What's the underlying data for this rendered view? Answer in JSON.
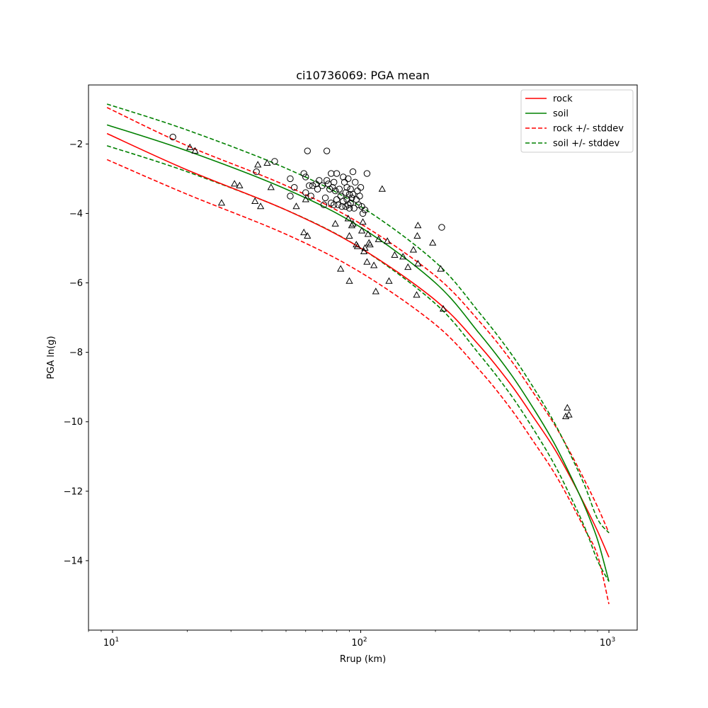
{
  "chart_data": {
    "type": "scatter",
    "title": "ci10736069: PGA mean",
    "xlabel": "Rrup (km)",
    "ylabel": "PGA ln(g)",
    "xscale": "log",
    "xlim": [
      8,
      1300
    ],
    "ylim": [
      -16,
      -0.3
    ],
    "x_ticks": [
      {
        "value": 10,
        "base": "10",
        "exp": "1"
      },
      {
        "value": 100,
        "base": "10",
        "exp": "2"
      },
      {
        "value": 1000,
        "base": "10",
        "exp": "3"
      }
    ],
    "y_ticks": [
      {
        "value": -2,
        "label": "−2"
      },
      {
        "value": -4,
        "label": "−4"
      },
      {
        "value": -6,
        "label": "−6"
      },
      {
        "value": -8,
        "label": "−8"
      },
      {
        "value": -10,
        "label": "−10"
      },
      {
        "value": -12,
        "label": "−12"
      },
      {
        "value": -14,
        "label": "−14"
      }
    ],
    "grid": false,
    "legend_position": "top-right",
    "series": [
      {
        "name": "rock",
        "kind": "line",
        "color": "#ff0000",
        "dash": "solid",
        "x": [
          9.5,
          20,
          50,
          100,
          200,
          300,
          400,
          500,
          600,
          700,
          800,
          900,
          1000
        ],
        "y": [
          -1.7,
          -2.75,
          -3.9,
          -5.0,
          -6.5,
          -7.8,
          -8.9,
          -9.9,
          -10.75,
          -11.6,
          -12.4,
          -13.15,
          -13.9
        ]
      },
      {
        "name": "soil",
        "kind": "line",
        "color": "#008000",
        "dash": "solid",
        "x": [
          9.5,
          20,
          50,
          100,
          200,
          300,
          400,
          500,
          600,
          700,
          800,
          900,
          1000
        ],
        "y": [
          -1.45,
          -2.2,
          -3.3,
          -4.4,
          -6.0,
          -7.45,
          -8.6,
          -9.65,
          -10.6,
          -11.55,
          -12.45,
          -13.4,
          -14.6
        ]
      },
      {
        "name": "rock +/- stddev",
        "kind": "band",
        "color": "#ff0000",
        "dash": "dashed",
        "x": [
          9.5,
          20,
          50,
          100,
          200,
          300,
          400,
          500,
          600,
          700,
          800,
          900,
          1000
        ],
        "upper": [
          -0.95,
          -2.05,
          -3.2,
          -4.3,
          -5.8,
          -7.1,
          -8.2,
          -9.2,
          -10.05,
          -10.9,
          -11.7,
          -12.45,
          -13.2
        ],
        "lower": [
          -2.45,
          -3.45,
          -4.6,
          -5.7,
          -7.2,
          -8.5,
          -9.6,
          -10.6,
          -11.45,
          -12.3,
          -13.1,
          -13.85,
          -15.25
        ]
      },
      {
        "name": "soil +/- stddev",
        "kind": "band",
        "color": "#008000",
        "dash": "dashed",
        "x": [
          9.5,
          20,
          50,
          100,
          200,
          300,
          400,
          500,
          600,
          700,
          800,
          900,
          1000
        ],
        "upper": [
          -0.85,
          -1.6,
          -2.7,
          -3.8,
          -5.4,
          -6.85,
          -8.0,
          -9.05,
          -10.0,
          -10.95,
          -11.85,
          -12.8,
          -13.2
        ],
        "lower": [
          -2.05,
          -2.8,
          -3.9,
          -5.0,
          -6.6,
          -8.05,
          -9.2,
          -10.25,
          -11.2,
          -12.15,
          -13.05,
          -14.0,
          -14.6
        ]
      }
    ],
    "markers": {
      "circle": [
        [
          17.5,
          -1.8
        ],
        [
          38,
          -2.8
        ],
        [
          45,
          -2.5
        ],
        [
          52,
          -3.0
        ],
        [
          52,
          -3.5
        ],
        [
          54,
          -3.25
        ],
        [
          59,
          -2.85
        ],
        [
          60,
          -2.95
        ],
        [
          60,
          -3.4
        ],
        [
          61,
          -2.2
        ],
        [
          62,
          -3.2
        ],
        [
          63,
          -3.5
        ],
        [
          64,
          -3.2
        ],
        [
          66,
          -3.15
        ],
        [
          67,
          -3.3
        ],
        [
          68,
          -3.05
        ],
        [
          70,
          -3.2
        ],
        [
          71,
          -3.75
        ],
        [
          72,
          -3.55
        ],
        [
          73,
          -2.2
        ],
        [
          73,
          -3.05
        ],
        [
          74,
          -3.15
        ],
        [
          75,
          -3.3
        ],
        [
          76,
          -2.85
        ],
        [
          76,
          -3.7
        ],
        [
          77,
          -3.25
        ],
        [
          78,
          -3.1
        ],
        [
          78,
          -3.75
        ],
        [
          79,
          -3.35
        ],
        [
          80,
          -2.85
        ],
        [
          80,
          -3.6
        ],
        [
          81,
          -3.75
        ],
        [
          82,
          -3.3
        ],
        [
          83,
          -3.5
        ],
        [
          84,
          -3.8
        ],
        [
          85,
          -2.95
        ],
        [
          85,
          -3.65
        ],
        [
          86,
          -3.1
        ],
        [
          87,
          -3.4
        ],
        [
          87,
          -3.8
        ],
        [
          88,
          -3.25
        ],
        [
          88,
          -3.6
        ],
        [
          89,
          -3.0
        ],
        [
          89,
          -3.75
        ],
        [
          90,
          -3.45
        ],
        [
          90,
          -3.85
        ],
        [
          91,
          -3.3
        ],
        [
          91,
          -3.7
        ],
        [
          92,
          -3.55
        ],
        [
          93,
          -2.8
        ],
        [
          93,
          -3.45
        ],
        [
          94,
          -3.85
        ],
        [
          95,
          -3.1
        ],
        [
          96,
          -3.6
        ],
        [
          97,
          -3.35
        ],
        [
          98,
          -3.75
        ],
        [
          99,
          -3.5
        ],
        [
          100,
          -3.25
        ],
        [
          101,
          -3.8
        ],
        [
          102,
          -4.0
        ],
        [
          104,
          -3.9
        ],
        [
          106,
          -2.85
        ],
        [
          212,
          -4.4
        ]
      ],
      "triangle": [
        [
          20.5,
          -2.1
        ],
        [
          21.5,
          -2.2
        ],
        [
          27.5,
          -3.7
        ],
        [
          31,
          -3.15
        ],
        [
          32.5,
          -3.2
        ],
        [
          37.5,
          -3.65
        ],
        [
          38.5,
          -2.6
        ],
        [
          39.5,
          -3.8
        ],
        [
          42,
          -2.55
        ],
        [
          43.5,
          -3.25
        ],
        [
          55,
          -3.8
        ],
        [
          59,
          -4.55
        ],
        [
          60,
          -3.6
        ],
        [
          61,
          -4.65
        ],
        [
          79,
          -4.3
        ],
        [
          83,
          -5.6
        ],
        [
          89,
          -4.15
        ],
        [
          90,
          -4.65
        ],
        [
          90,
          -5.95
        ],
        [
          92,
          -4.35
        ],
        [
          93,
          -4.3
        ],
        [
          96,
          -4.9
        ],
        [
          97,
          -4.95
        ],
        [
          101,
          -4.5
        ],
        [
          102,
          -4.25
        ],
        [
          103,
          -5.1
        ],
        [
          104,
          -5.0
        ],
        [
          106,
          -5.4
        ],
        [
          107,
          -4.6
        ],
        [
          108,
          -4.85
        ],
        [
          109,
          -4.9
        ],
        [
          113,
          -5.5
        ],
        [
          115,
          -6.25
        ],
        [
          118,
          -4.75
        ],
        [
          122,
          -3.3
        ],
        [
          128,
          -4.8
        ],
        [
          130,
          -5.95
        ],
        [
          137,
          -5.2
        ],
        [
          148,
          -5.25
        ],
        [
          155,
          -5.55
        ],
        [
          163,
          -5.05
        ],
        [
          168,
          -6.35
        ],
        [
          169,
          -4.65
        ],
        [
          170,
          -4.35
        ],
        [
          170,
          -5.45
        ],
        [
          195,
          -4.85
        ],
        [
          210,
          -5.6
        ],
        [
          215,
          -6.75
        ],
        [
          680,
          -9.6
        ],
        [
          670,
          -9.85
        ],
        [
          690,
          -9.8
        ]
      ]
    }
  }
}
